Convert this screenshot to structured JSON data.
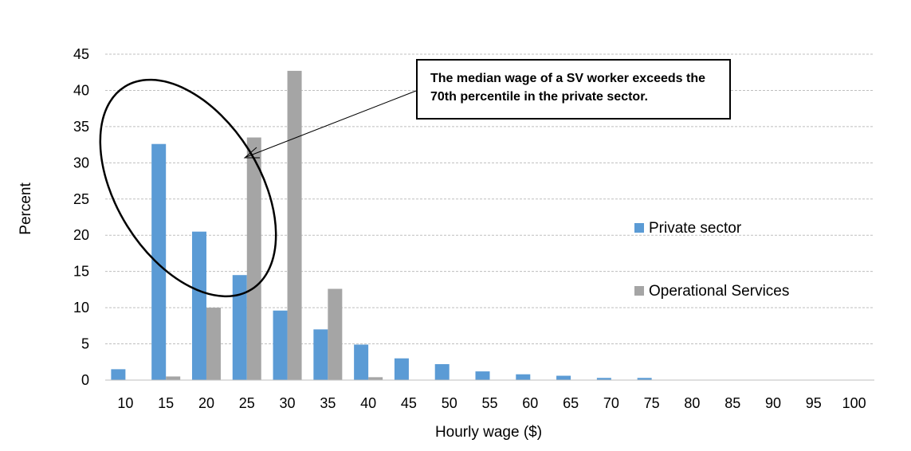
{
  "chart_data": {
    "type": "bar",
    "xlabel": "Hourly wage ($)",
    "ylabel": "Percent",
    "ylim": [
      0,
      45
    ],
    "yticks": [
      0,
      5,
      10,
      15,
      20,
      25,
      30,
      35,
      40,
      45
    ],
    "categories": [
      "10",
      "15",
      "20",
      "25",
      "30",
      "35",
      "40",
      "45",
      "50",
      "55",
      "60",
      "65",
      "70",
      "75",
      "80",
      "85",
      "90",
      "95",
      "100"
    ],
    "series": [
      {
        "name": "Private sector",
        "color": "#5b9bd5",
        "values": [
          1.5,
          32.6,
          20.5,
          14.5,
          9.6,
          7.0,
          4.9,
          3.0,
          2.2,
          1.2,
          0.8,
          0.6,
          0.3,
          0.3,
          0,
          0,
          0,
          0,
          0
        ]
      },
      {
        "name": "Operational Services",
        "color": "#a5a5a5",
        "values": [
          0,
          0.5,
          10.0,
          33.5,
          42.7,
          12.6,
          0.4,
          0,
          0,
          0,
          0,
          0,
          0,
          0,
          0,
          0,
          0,
          0,
          0
        ]
      }
    ],
    "grid": true,
    "legend_position": "right",
    "annotation": {
      "text": "The median wage of a SV worker exceeds the 70th percentile in the private sector."
    }
  }
}
